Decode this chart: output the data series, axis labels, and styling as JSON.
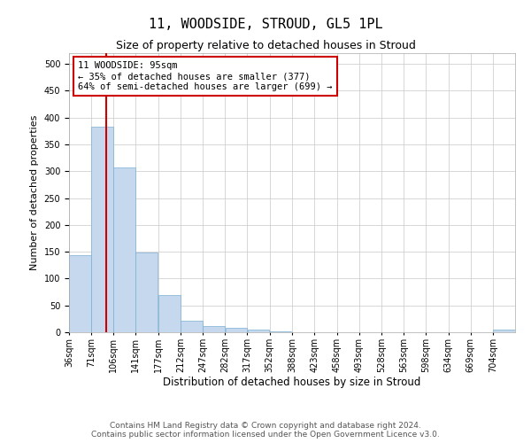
{
  "title": "11, WOODSIDE, STROUD, GL5 1PL",
  "subtitle": "Size of property relative to detached houses in Stroud",
  "xlabel": "Distribution of detached houses by size in Stroud",
  "ylabel": "Number of detached properties",
  "bar_color": "#c5d8ee",
  "bar_edge_color": "#7aafd4",
  "background_color": "#ffffff",
  "grid_color": "#c8c8c8",
  "annotation_text": "11 WOODSIDE: 95sqm\n← 35% of detached houses are smaller (377)\n64% of semi-detached houses are larger (699) →",
  "annotation_box_color": "#ffffff",
  "annotation_box_edge_color": "#cc0000",
  "vline_x": 95,
  "vline_color": "#cc0000",
  "bin_edges": [
    36,
    71,
    106,
    141,
    177,
    212,
    247,
    282,
    317,
    352,
    388,
    423,
    458,
    493,
    528,
    563,
    598,
    634,
    669,
    704,
    739
  ],
  "bar_heights": [
    143,
    383,
    307,
    148,
    70,
    22,
    11,
    9,
    5,
    2,
    0,
    0,
    0,
    0,
    0,
    0,
    0,
    0,
    0,
    5
  ],
  "ylim": [
    0,
    520
  ],
  "yticks": [
    0,
    50,
    100,
    150,
    200,
    250,
    300,
    350,
    400,
    450,
    500
  ],
  "footer_text": "Contains HM Land Registry data © Crown copyright and database right 2024.\nContains public sector information licensed under the Open Government Licence v3.0.",
  "tick_label_fontsize": 7,
  "title_fontsize": 11,
  "subtitle_fontsize": 9,
  "xlabel_fontsize": 8.5,
  "ylabel_fontsize": 8,
  "footer_fontsize": 6.5,
  "annot_fontsize": 7.5
}
